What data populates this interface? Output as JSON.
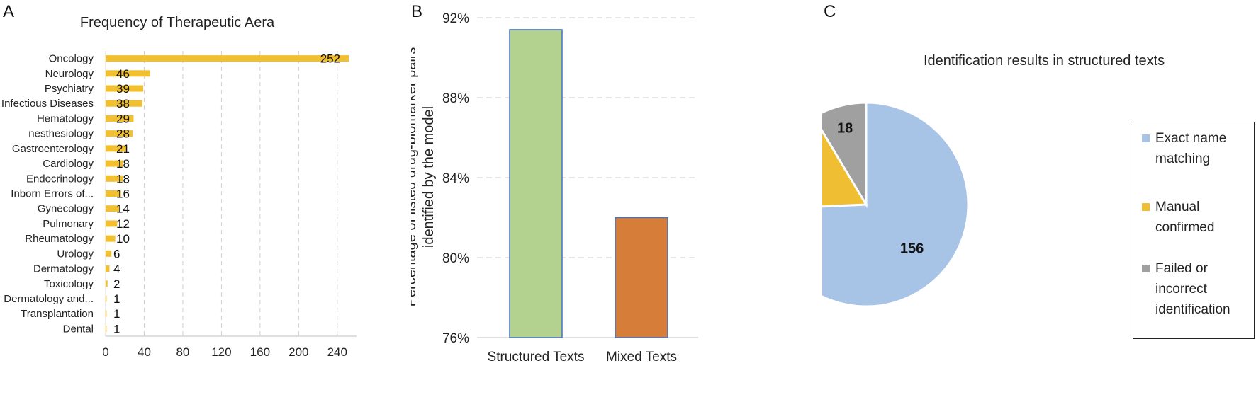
{
  "panels": [
    {
      "letter": "A",
      "chart_data": {
        "type": "bar",
        "orientation": "horizontal",
        "title": "Frequency of Therapeutic Aera",
        "categories": [
          "Oncology",
          "Neurology",
          "Psychiatry",
          "Infectious Diseases",
          "Hematology",
          "nesthesiology",
          "Gastroenterology",
          "Cardiology",
          "Endocrinology",
          "Inborn Errors of...",
          "Gynecology",
          "Pulmonary",
          "Rheumatology",
          "Urology",
          "Dermatology",
          "Toxicology",
          "Dermatology and...",
          "Transplantation",
          "Dental"
        ],
        "values": [
          252,
          46,
          39,
          38,
          29,
          28,
          21,
          18,
          18,
          16,
          14,
          12,
          10,
          6,
          4,
          2,
          1,
          1,
          1
        ],
        "xlim": [
          0,
          260
        ],
        "xticks": [
          0,
          40,
          80,
          120,
          160,
          200,
          240
        ],
        "grid": "vertical-dashed",
        "color": "#F0C030"
      }
    },
    {
      "letter": "B",
      "chart_data": {
        "type": "bar",
        "categories": [
          "Structured Texts",
          "Mixed Texts"
        ],
        "values": [
          91.4,
          82.0
        ],
        "colors": [
          "#B3D18F",
          "#D67D3A"
        ],
        "edge_color": "#4472C4",
        "ylabel_lines": [
          "Percentage of listed drug-biomarker pairs",
          "identified by the model"
        ],
        "ylim": [
          76,
          92
        ],
        "yticks": [
          76,
          80,
          84,
          88,
          92
        ],
        "ytick_labels": [
          "76%",
          "80%",
          "84%",
          "88%",
          "92%"
        ],
        "grid": "horizontal-dashed"
      }
    },
    {
      "letter": "C",
      "chart_data": {
        "type": "pie",
        "title": "Identification results in structured texts",
        "slices": [
          {
            "label": "Exact name matching",
            "legend_lines": [
              "Exact name",
              "matching"
            ],
            "value": 156,
            "color": "#A7C3E6"
          },
          {
            "label": "Manual confirmed",
            "legend_lines": [
              "Manual",
              "confirmed"
            ],
            "value": 36,
            "color": "#F0BE32"
          },
          {
            "label": "Failed or incorrect identification",
            "legend_lines": [
              "Failed or",
              "incorrect",
              "identification"
            ],
            "value": 18,
            "color": "#A0A0A0"
          }
        ],
        "legend_placement": "right"
      }
    }
  ]
}
